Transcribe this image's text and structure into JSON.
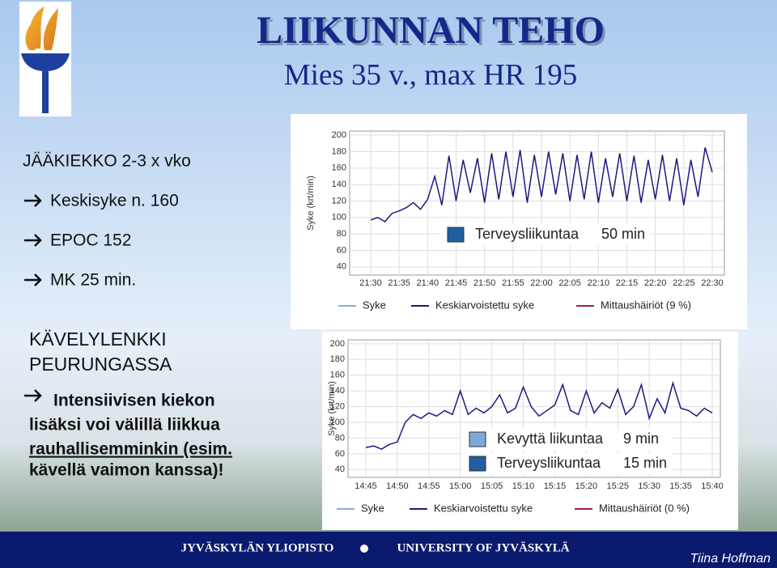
{
  "header": {
    "title": "LIIKUNNAN TEHO",
    "subtitle": "Mies 35 v., max HR 195"
  },
  "hockey": {
    "heading": "JÄÄKIEKKO 2-3 x vko",
    "bullets": [
      "Keskisyke n. 160",
      "EPOC 152",
      "MK 25 min."
    ]
  },
  "walk": {
    "heading": [
      "KÄVELYLENKKI",
      "PEURUNGASSA"
    ],
    "lines": [
      "Intensiivisen kiekon",
      "lisäksi voi välillä liikkua",
      "rauhallisemminkin (esim.",
      "kävellä vaimon kanssa)!"
    ]
  },
  "chart_data": [
    {
      "type": "line",
      "ylabel": "Syke (krt/min)",
      "ylim": [
        30,
        205
      ],
      "yticks": [
        40,
        60,
        80,
        100,
        120,
        140,
        160,
        180,
        200
      ],
      "grid": true,
      "categories": [
        "21:30",
        null,
        null,
        null,
        "21:35",
        null,
        null,
        null,
        "21:40",
        null,
        null,
        null,
        "21:45",
        null,
        null,
        null,
        "21:50",
        null,
        null,
        null,
        "21:55",
        null,
        null,
        null,
        "22:00",
        null,
        null,
        null,
        "22:05",
        null,
        null,
        null,
        "22:10",
        null,
        null,
        null,
        "22:15",
        null,
        null,
        null,
        "22:20",
        null,
        null,
        null,
        "22:25",
        null,
        null,
        null,
        "22:30"
      ],
      "series": [
        {
          "name": "Keskiarvoistettu syke",
          "color": "#1a1a80",
          "values": [
            97,
            100,
            95,
            105,
            108,
            112,
            118,
            110,
            122,
            150,
            115,
            175,
            120,
            170,
            130,
            172,
            118,
            178,
            122,
            180,
            125,
            182,
            118,
            176,
            125,
            180,
            128,
            178,
            120,
            176,
            122,
            180,
            118,
            172,
            125,
            178,
            120,
            175,
            118,
            170,
            122,
            176,
            120,
            172,
            115,
            170,
            125,
            185,
            155
          ]
        }
      ],
      "legend": [
        {
          "name": "Syke",
          "color": "#8fa8e0"
        },
        {
          "name": "Keskiarvoistettu syke",
          "color": "#1a1a80"
        },
        {
          "name": "Mittaushäiriöt (9 %)",
          "color": "#a0203a"
        }
      ],
      "zones": [
        {
          "label": "Terveysliikuntaa",
          "duration": "50 min",
          "color": "#1f5fa0"
        }
      ]
    },
    {
      "type": "line",
      "ylabel": "Syke (krt/min)",
      "ylim": [
        30,
        205
      ],
      "yticks": [
        40,
        60,
        80,
        100,
        120,
        140,
        160,
        180,
        200
      ],
      "grid": true,
      "categories": [
        "14:45",
        null,
        null,
        null,
        "14:50",
        null,
        null,
        null,
        "14:55",
        null,
        null,
        null,
        "15:00",
        null,
        null,
        null,
        "15:05",
        null,
        null,
        null,
        "15:10",
        null,
        null,
        null,
        "15:15",
        null,
        null,
        null,
        "15:20",
        null,
        null,
        null,
        "15:25",
        null,
        null,
        null,
        "15:30",
        null,
        null,
        null,
        "15:35",
        null,
        null,
        null,
        "15:40"
      ],
      "series": [
        {
          "name": "Keskiarvoistettu syke",
          "color": "#1a1a80",
          "values": [
            68,
            70,
            66,
            72,
            75,
            100,
            110,
            105,
            112,
            108,
            115,
            110,
            140,
            110,
            118,
            112,
            120,
            135,
            112,
            118,
            145,
            120,
            108,
            115,
            122,
            148,
            115,
            110,
            140,
            112,
            125,
            118,
            142,
            110,
            120,
            148,
            105,
            130,
            112,
            150,
            118,
            115,
            108,
            118,
            112
          ]
        }
      ],
      "legend": [
        {
          "name": "Syke",
          "color": "#8fa8e0"
        },
        {
          "name": "Keskiarvoistettu syke",
          "color": "#1a1a80"
        },
        {
          "name": "Mittaushäiriöt (0 %)",
          "color": "#a0203a"
        }
      ],
      "zones": [
        {
          "label": "Kevyttä liikuntaa",
          "duration": "9 min",
          "color": "#7fa8d8"
        },
        {
          "label": "Terveysliikuntaa",
          "duration": "15 min",
          "color": "#1f5fa0"
        }
      ]
    }
  ],
  "footer": {
    "left": "JYVÄSKYLÄN YLIOPISTO",
    "right": "UNIVERSITY OF JYVÄSKYLÄ",
    "author": "Tiina Hoffman"
  }
}
